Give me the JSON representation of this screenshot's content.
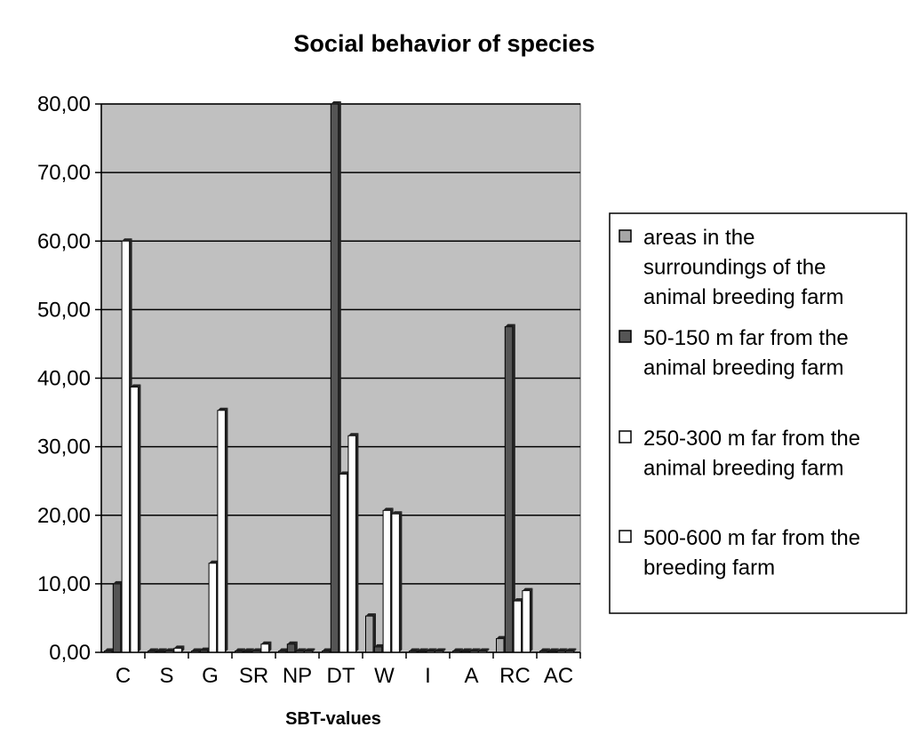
{
  "chart_data": {
    "type": "bar",
    "title": "Social behavior of species",
    "xlabel": "SBT-values",
    "ylabel": "",
    "ylim": [
      0,
      80
    ],
    "yticks": [
      "0,00",
      "10,00",
      "20,00",
      "30,00",
      "40,00",
      "50,00",
      "60,00",
      "70,00",
      "80,00"
    ],
    "grid": true,
    "legend_position": "right",
    "categories": [
      "C",
      "S",
      "G",
      "SR",
      "NP",
      "DT",
      "W",
      "I",
      "A",
      "RC",
      "AC"
    ],
    "series": [
      {
        "name": "areas in the surroundings of the animal breeding farm",
        "color": "#a6a6a6",
        "values": [
          0,
          0,
          0,
          0,
          0,
          0,
          5.3,
          0,
          0,
          2,
          0
        ]
      },
      {
        "name": "50-150 m far from the animal breeding farm",
        "color": "#555555",
        "values": [
          10,
          0,
          0.3,
          0,
          1.2,
          80,
          0.8,
          0,
          0,
          47.5,
          0
        ]
      },
      {
        "name": "250-300 m far from the animal breeding farm",
        "color": "#ffffff",
        "values": [
          60,
          0,
          13,
          0,
          0,
          26,
          20.7,
          0,
          0,
          7.5,
          0
        ]
      },
      {
        "name": "500-600 m far from the breeding farm",
        "color": "#ffffff",
        "values": [
          38.7,
          0.6,
          35.3,
          1.2,
          0,
          31.6,
          20.2,
          0,
          0,
          9,
          0
        ]
      }
    ],
    "legend_lines": [
      [
        "areas in the",
        "surroundings of the",
        "animal breeding farm"
      ],
      [
        "50-150 m far from the",
        "animal breeding farm"
      ],
      [
        "250-300 m far from the",
        "animal breeding farm"
      ],
      [
        "500-600 m far from the",
        "breeding farm"
      ]
    ]
  }
}
